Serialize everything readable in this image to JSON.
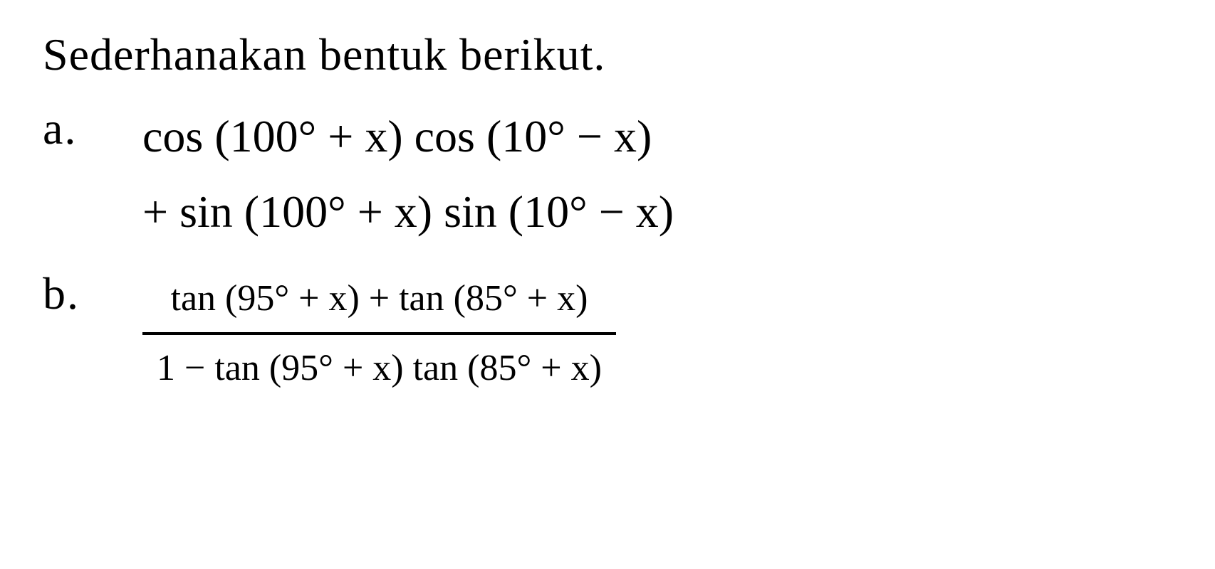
{
  "text_color": "#000000",
  "background_color": "#ffffff",
  "font_family": "Georgia, Times New Roman, serif",
  "instruction": {
    "text": "Sederhanakan bentuk berikut.",
    "font_size": 64
  },
  "problems": {
    "a": {
      "label": "a.",
      "line1": "cos (100° + x) cos (10° − x)",
      "line2": "+ sin (100° + x) sin (10° − x)",
      "font_size": 64
    },
    "b": {
      "label": "b.",
      "type": "fraction",
      "numerator": "tan (95° + x) + tan (85° + x)",
      "denominator": "1 − tan (95° + x) tan (85° + x)",
      "fraction_font_size": 52,
      "fraction_bar_width": 4
    }
  }
}
